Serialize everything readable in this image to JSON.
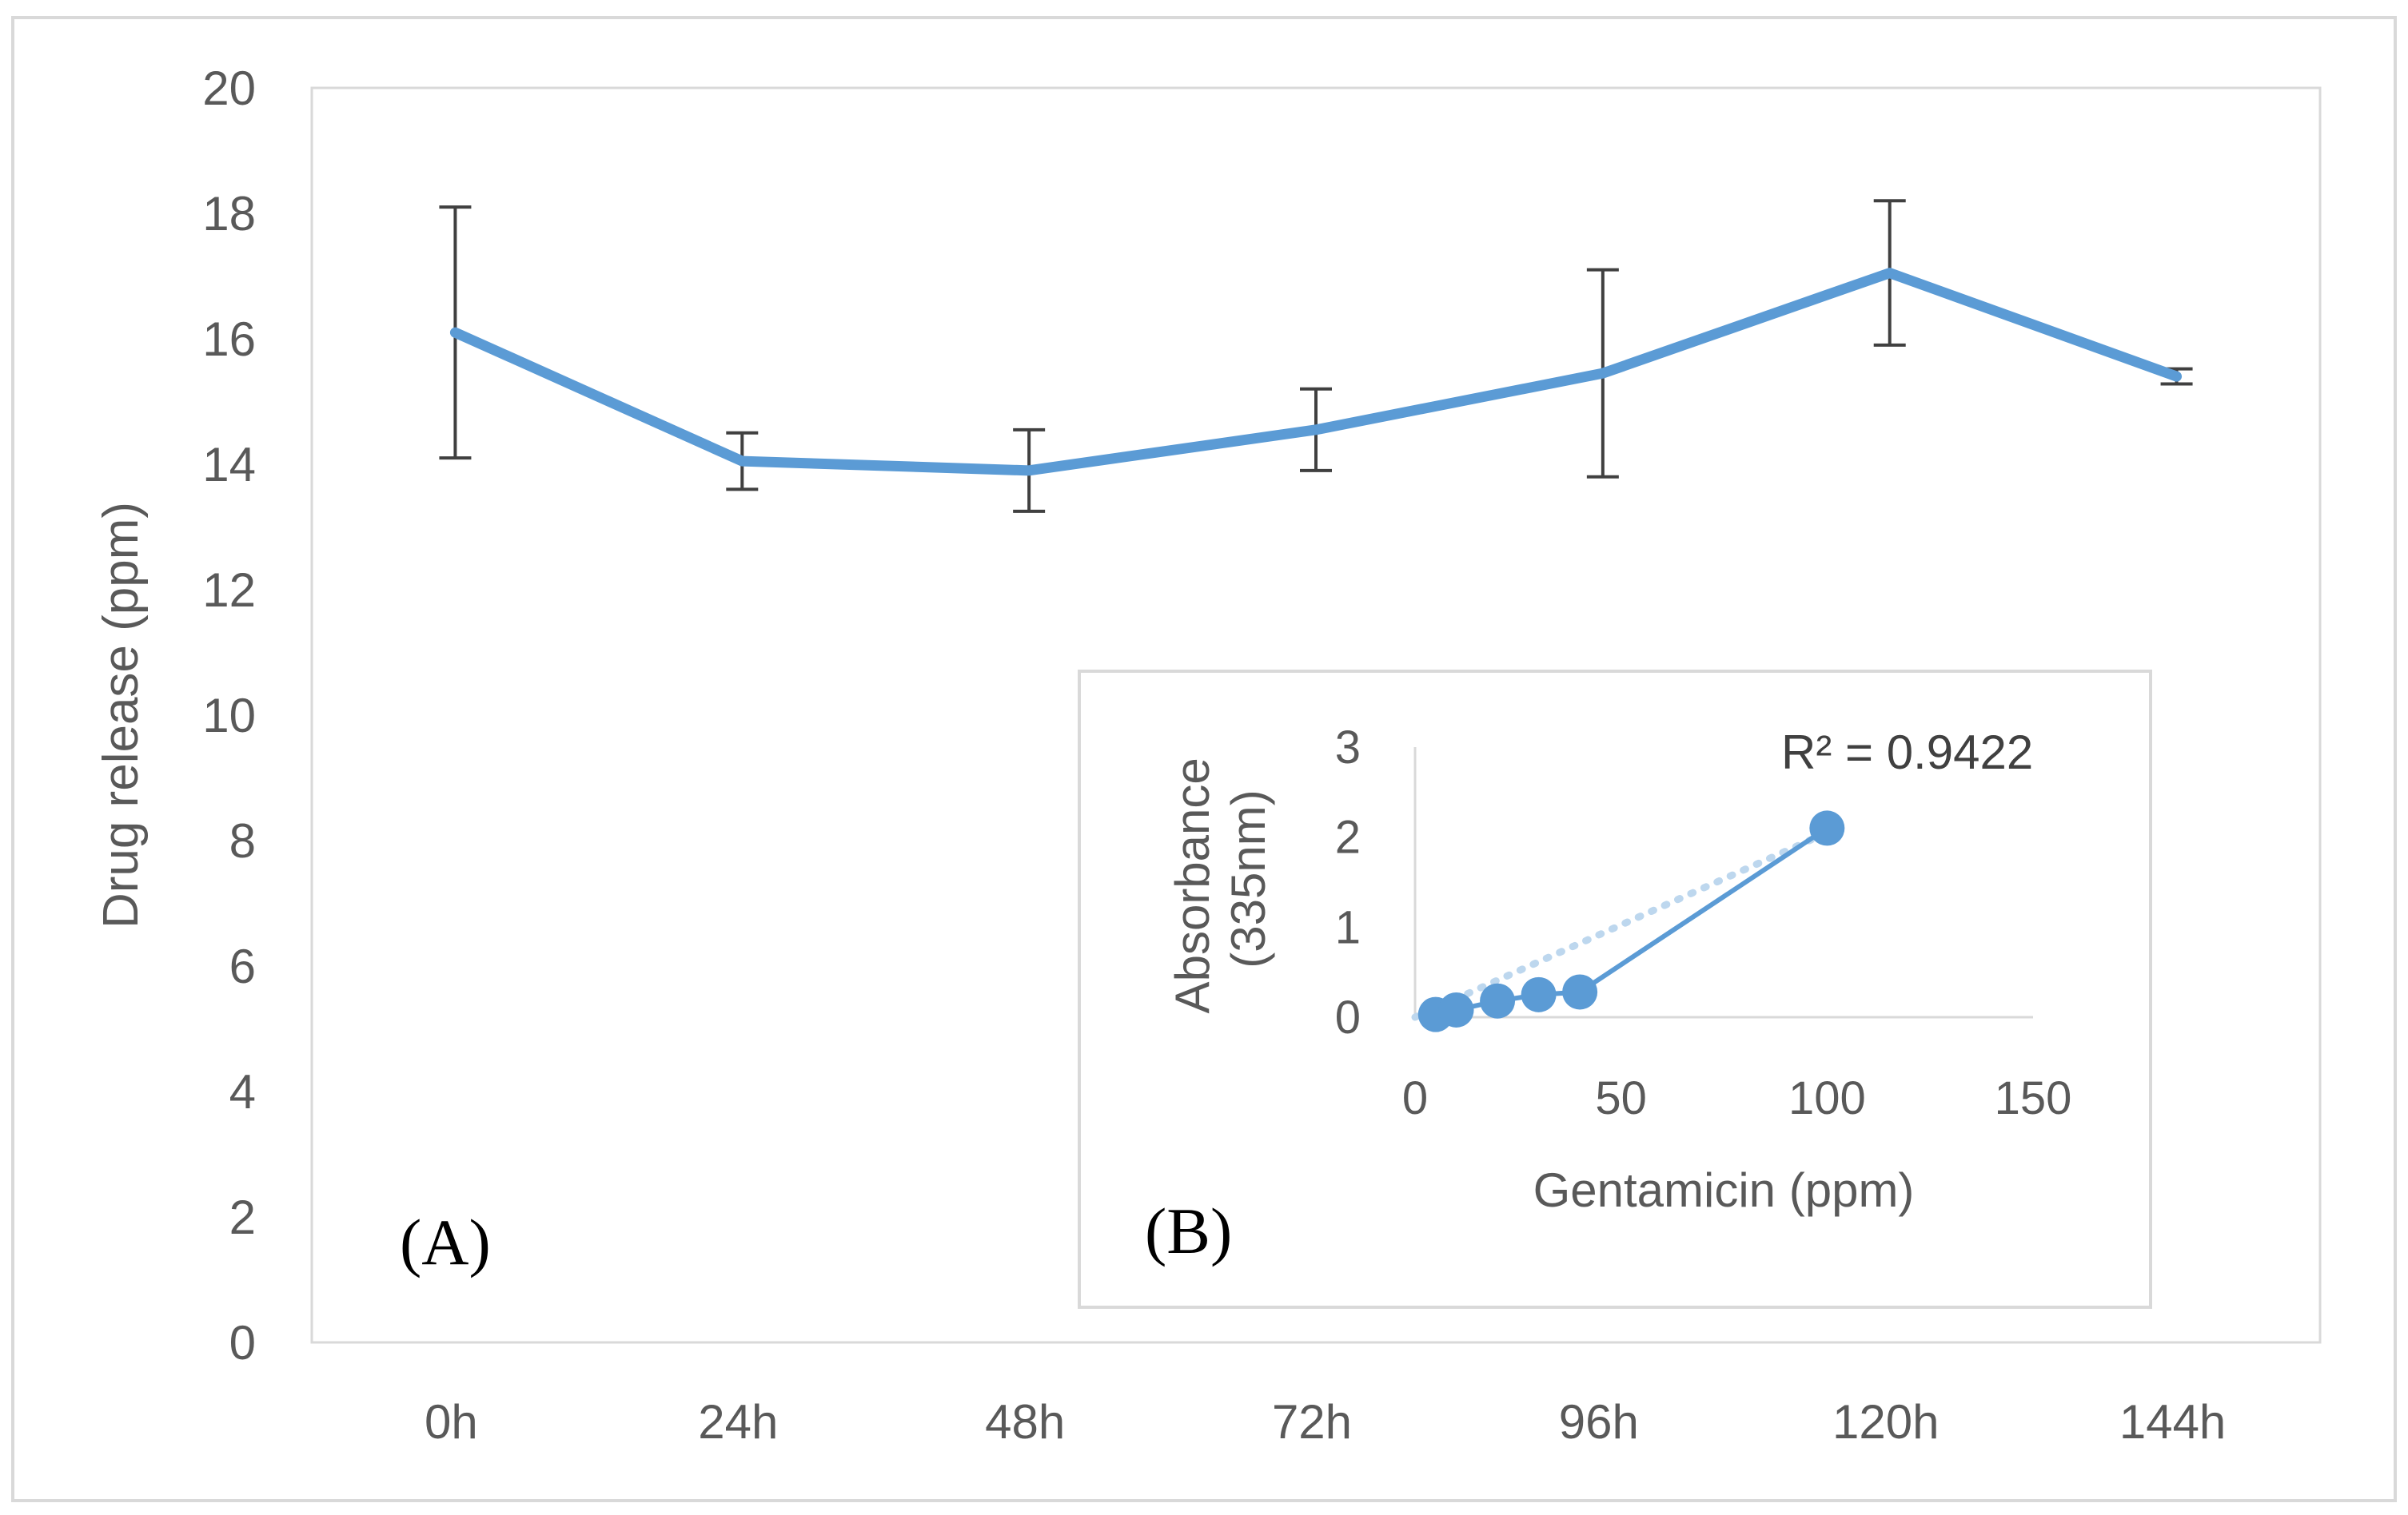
{
  "chart_data": [
    {
      "id": "A",
      "panel_label": "(A)",
      "type": "line",
      "title": "",
      "xlabel": "",
      "ylabel": "Drug release (ppm)",
      "categories": [
        "0h",
        "24h",
        "48h",
        "72h",
        "96h",
        "120h",
        "144h"
      ],
      "ylim": [
        0,
        20
      ],
      "yticks": [
        "0",
        "2",
        "4",
        "6",
        "8",
        "10",
        "12",
        "14",
        "16",
        "18",
        "20"
      ],
      "series": [
        {
          "name": "Drug release",
          "color": "#5b9bd5",
          "values": [
            16.1,
            14.05,
            13.9,
            14.55,
            15.45,
            17.05,
            15.4
          ],
          "error": [
            2.0,
            0.45,
            0.65,
            0.65,
            1.65,
            1.15,
            0.12
          ]
        }
      ],
      "grid": false,
      "legend": "none"
    },
    {
      "id": "B",
      "panel_label": "(B)",
      "type": "scatter",
      "title": "",
      "xlabel": "Gentamicin (ppm)",
      "ylabel": "Absorbance (335nm)",
      "ylabel_lines": [
        "Absorbance",
        "(335nm)"
      ],
      "xlim": [
        0,
        150
      ],
      "ylim": [
        0,
        3
      ],
      "xticks": [
        "0",
        "50",
        "100",
        "150"
      ],
      "yticks": [
        "0",
        "1",
        "2",
        "3"
      ],
      "series": [
        {
          "name": "Absorbance",
          "color": "#5b9bd5",
          "x": [
            5,
            10,
            20,
            30,
            40,
            100
          ],
          "y": [
            0.03,
            0.08,
            0.18,
            0.25,
            0.28,
            2.1
          ]
        }
      ],
      "trendline": {
        "type": "linear",
        "style": "dotted",
        "color": "#bdd7ee",
        "x": [
          0,
          100
        ],
        "y": [
          0.0,
          2.05
        ]
      },
      "annotation": "R² = 0.9422",
      "grid": false,
      "legend": "none"
    }
  ]
}
